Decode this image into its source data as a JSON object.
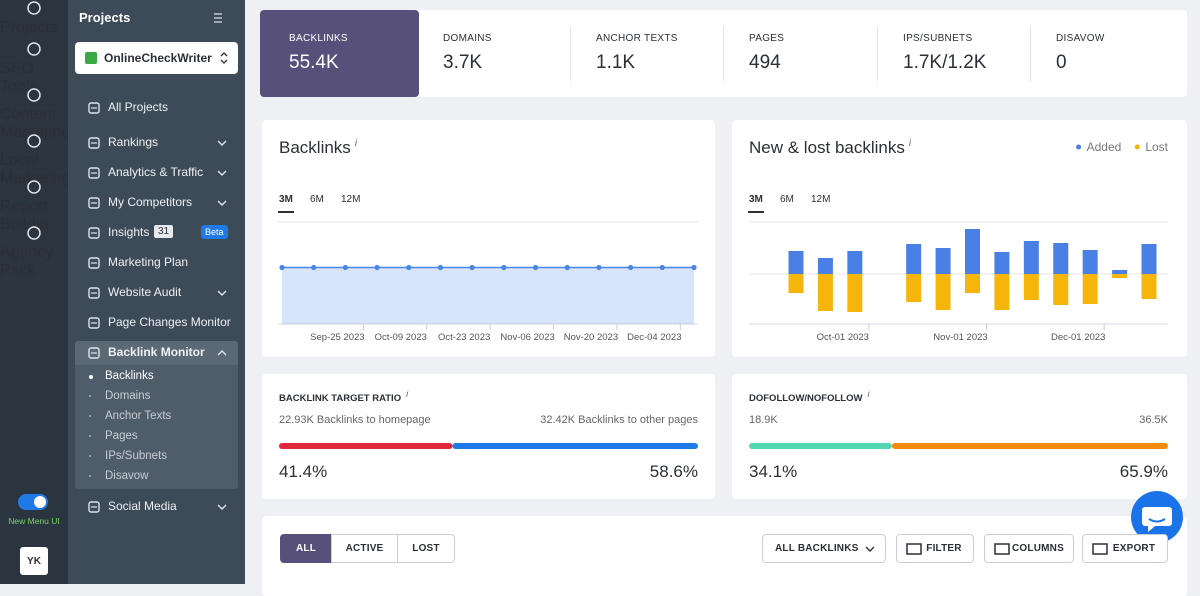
{
  "info": "i",
  "rail": {
    "items": [
      "Projects",
      "SEO Tools",
      "Content Marketing",
      "Local Marketing",
      "Report Builder",
      "Agency Pack"
    ],
    "toggle_label": "New Menu UI",
    "avatar": "YK"
  },
  "sidebar": {
    "title": "Projects",
    "project": "OnlineCheckWriter",
    "menu": [
      {
        "label": "All Projects"
      },
      {
        "label": "Rankings",
        "chevron": true
      },
      {
        "label": "Analytics & Traffic",
        "chevron": true
      },
      {
        "label": "My Competitors",
        "chevron": true
      },
      {
        "label": "Insights",
        "badge": "31",
        "tag": "Beta"
      },
      {
        "label": "Marketing Plan"
      },
      {
        "label": "Website Audit",
        "chevron": true
      },
      {
        "label": "Page Changes Monitor"
      },
      {
        "label": "Backlink Monitor",
        "chevron": true,
        "expanded": true,
        "children": [
          "Backlinks",
          "Domains",
          "Anchor Texts",
          "Pages",
          "IPs/Subnets",
          "Disavow"
        ]
      },
      {
        "label": "Social Media",
        "chevron": true
      }
    ]
  },
  "stats": [
    {
      "label": "BACKLINKS",
      "value": "55.4K",
      "active": true
    },
    {
      "label": "DOMAINS",
      "value": "3.7K"
    },
    {
      "label": "ANCHOR TEXTS",
      "value": "1.1K"
    },
    {
      "label": "PAGES",
      "value": "494"
    },
    {
      "label": "IPS/SUBNETS",
      "value": "1.7K/1.2K"
    },
    {
      "label": "DISAVOW",
      "value": "0"
    }
  ],
  "chart_data": [
    {
      "type": "area",
      "title": "Backlinks",
      "tabs": [
        "3M",
        "6M",
        "12M"
      ],
      "categories": [
        null,
        null,
        "Sep-25 2023",
        null,
        "Oct-09 2023",
        null,
        "Oct-23 2023",
        null,
        "Nov-06 2023",
        null,
        "Nov-20 2023",
        null,
        "Dec-04 2023",
        null
      ],
      "values": [
        55400,
        55400,
        55400,
        55400,
        55400,
        55400,
        55400,
        55400,
        55400,
        55400,
        55400,
        55400,
        55400,
        55400
      ],
      "color": "#4a86e8",
      "ylim": [
        0,
        100000
      ]
    },
    {
      "type": "bar",
      "title": "New & lost backlinks",
      "tabs": [
        "3M",
        "6M",
        "12M"
      ],
      "categories": [
        null,
        null,
        "Oct-01 2023",
        null,
        null,
        null,
        "Nov-01 2023",
        null,
        null,
        null,
        "Dec-01 2023",
        null,
        null
      ],
      "series": [
        {
          "name": "Added",
          "color": "#4a7fe6",
          "values": [
            23,
            16,
            23,
            null,
            30,
            26,
            45,
            22,
            33,
            31,
            24,
            4,
            30
          ]
        },
        {
          "name": "Lost",
          "color": "#f5b50b",
          "values": [
            -19,
            -37,
            -38,
            null,
            -28,
            -36,
            -19,
            -36,
            -26,
            -31,
            -30,
            -4,
            -25
          ]
        }
      ],
      "ylim": [
        -50,
        50
      ],
      "legend": "top-right"
    }
  ],
  "ratios": [
    {
      "title": "BACKLINK TARGET RATIO",
      "left_text": "22.93K Backlinks to homepage",
      "right_text": "32.42K Backlinks to other pages",
      "values": [
        41.4,
        58.6
      ],
      "value_labels": [
        "41.4%",
        "58.6%"
      ],
      "colors": [
        "#e0273b",
        "#1f7ae8"
      ]
    },
    {
      "title": "DOFOLLOW/NOFOLLOW",
      "left_text": "18.9K",
      "right_text": "36.5K",
      "values": [
        34.1,
        65.9
      ],
      "value_labels": [
        "34.1%",
        "65.9%"
      ],
      "colors": [
        "#52d6b2",
        "#f28b0c"
      ]
    }
  ],
  "toolbar": {
    "filters": [
      "ALL",
      "ACTIVE",
      "LOST"
    ],
    "active_filter": 0,
    "dropdown": "ALL BACKLINKS",
    "buttons": [
      "FILTER",
      "COLUMNS",
      "EXPORT"
    ]
  }
}
